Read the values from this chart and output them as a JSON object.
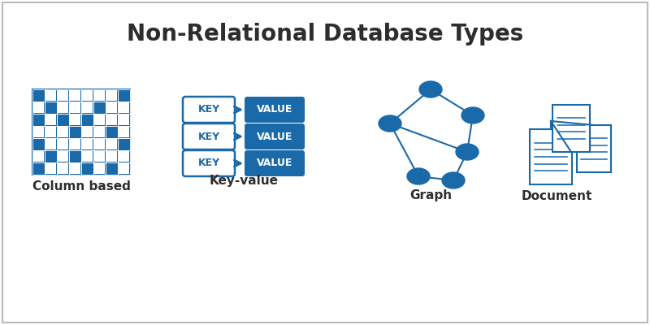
{
  "title": "Non-Relational Database Types",
  "title_fontsize": 20,
  "title_color": "#2d2d2d",
  "title_fontweight": "bold",
  "background_color": "#ffffff",
  "border_color": "#bbbbbb",
  "blue": "#1a6aaa",
  "categories": [
    "Column based",
    "Key-value",
    "Graph",
    "Document"
  ],
  "label_fontsize": 11,
  "label_fontweight": "bold",
  "label_color": "#2d2d2d",
  "grid_pattern": [
    [
      1,
      0,
      0,
      0,
      0,
      0,
      0,
      1
    ],
    [
      0,
      1,
      0,
      0,
      0,
      1,
      0,
      0
    ],
    [
      1,
      0,
      1,
      0,
      1,
      0,
      0,
      0
    ],
    [
      0,
      0,
      0,
      1,
      0,
      0,
      1,
      0
    ],
    [
      1,
      0,
      0,
      0,
      0,
      0,
      0,
      1
    ],
    [
      0,
      1,
      0,
      1,
      0,
      0,
      0,
      0
    ],
    [
      1,
      0,
      0,
      0,
      1,
      0,
      1,
      0
    ]
  ]
}
